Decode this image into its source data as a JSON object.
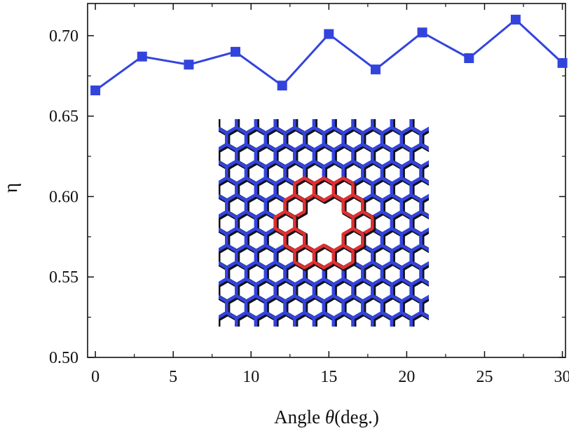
{
  "chart_data": {
    "type": "line",
    "xlabel": "Angle θ (deg.)",
    "xlabel_parts": {
      "prefix": "Angle ",
      "symbol": "θ",
      "suffix": "(deg.)"
    },
    "ylabel": "η",
    "xlim": [
      -0.5,
      30.2
    ],
    "ylim": [
      0.5,
      0.72
    ],
    "xticks": [
      0,
      5,
      10,
      15,
      20,
      25,
      30
    ],
    "xtick_labels": [
      "0",
      "5",
      "10",
      "15",
      "20",
      "25",
      "30"
    ],
    "yticks": [
      0.5,
      0.55,
      0.6,
      0.65,
      0.7
    ],
    "ytick_labels": [
      "0.50",
      "0.55",
      "0.60",
      "0.65",
      "0.70"
    ],
    "grid": false,
    "legend": "none",
    "series": [
      {
        "color": "#3344dd",
        "marker": "square",
        "x": [
          0,
          3,
          6,
          9,
          12,
          15,
          18,
          21,
          24,
          27,
          30
        ],
        "y": [
          0.666,
          0.687,
          0.682,
          0.69,
          0.669,
          0.701,
          0.679,
          0.702,
          0.686,
          0.71,
          0.683
        ]
      }
    ],
    "inset": {
      "description_kind": "image",
      "lattice_color": "#3344dd",
      "pore_edge_color": "#e03030"
    }
  }
}
